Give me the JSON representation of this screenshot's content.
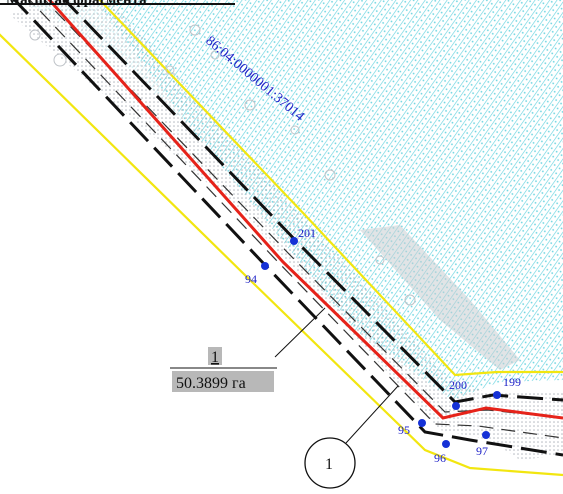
{
  "header": {
    "title": "Масштаб фрагмента"
  },
  "cadastral_number": "86:04:0000001:37014",
  "parcel_label": {
    "number": "1",
    "area": "50.3899 га"
  },
  "zone_marker": {
    "number": "1"
  },
  "points": [
    {
      "id": "201",
      "label": "201"
    },
    {
      "id": "94",
      "label": "94"
    },
    {
      "id": "200",
      "label": "200"
    },
    {
      "id": "199",
      "label": "199"
    },
    {
      "id": "95",
      "label": "95"
    },
    {
      "id": "96",
      "label": "96"
    },
    {
      "id": "97",
      "label": "97"
    }
  ],
  "colors": {
    "hatch": "#39c6d6",
    "boundary": "#f2e610",
    "centerline": "#e6231a",
    "dashes": "#111111",
    "points": "#1531d6",
    "label_bg": "#b8b8b8"
  }
}
